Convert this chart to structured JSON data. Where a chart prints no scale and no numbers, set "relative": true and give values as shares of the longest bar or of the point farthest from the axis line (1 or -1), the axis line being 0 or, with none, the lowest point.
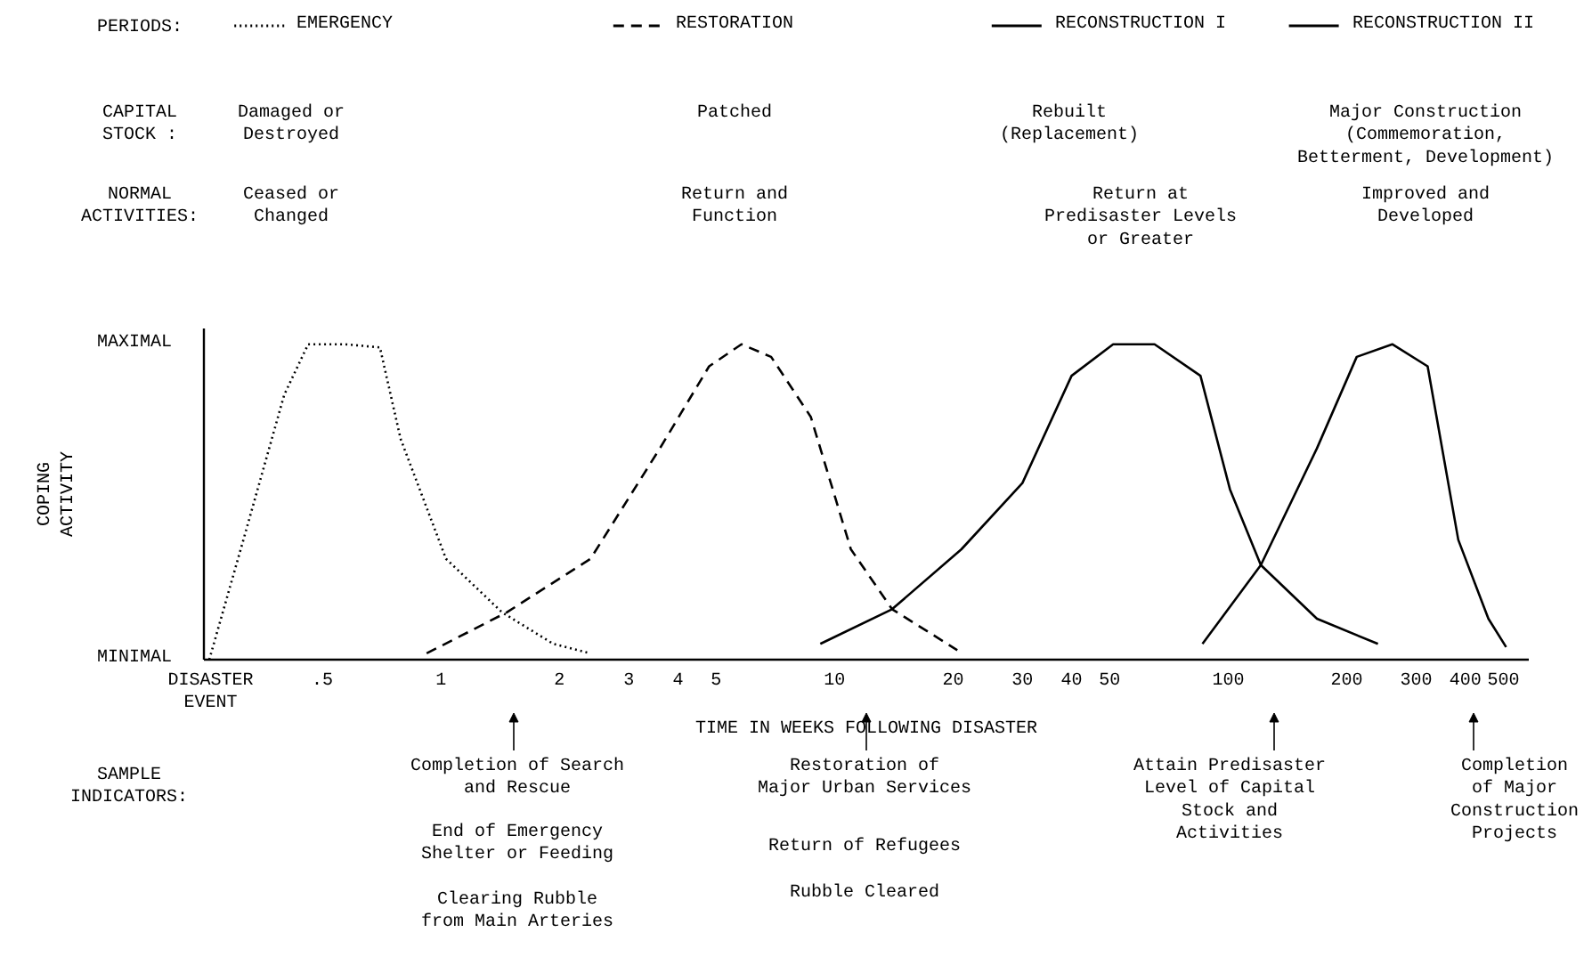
{
  "chart_data": {
    "type": "line",
    "xlabel": "TIME IN WEEKS FOLLOWING DISASTER",
    "ylabel": "COPING\nACTIVITY",
    "log": "x",
    "relative": true,
    "xlim": [
      0.25,
      580
    ],
    "xticks": [
      {
        "value": 0.26,
        "label": "DISASTER\nEVENT"
      },
      {
        "value": 0.5,
        "label": ".5"
      },
      1,
      2,
      3,
      4,
      5,
      10,
      20,
      30,
      40,
      50,
      100,
      200,
      300,
      400,
      500
    ],
    "legend": "top",
    "marker": "none",
    "series": [
      {
        "name": "EMERGENCY",
        "color": "#000000",
        "line_style": "dotted",
        "x": [
          0.258,
          0.315,
          0.4,
          0.46,
          0.57,
          0.7,
          0.79,
          1.03,
          1.43,
          1.93,
          2.4
        ],
        "values": [
          0,
          0.38,
          0.84,
          1.0,
          1.0,
          0.99,
          0.7,
          0.32,
          0.15,
          0.05,
          0.02
        ]
      },
      {
        "name": "RESTORATION",
        "color": "#000000",
        "line_style": "dashed",
        "x": [
          0.92,
          1.47,
          2.4,
          3.6,
          4.8,
          5.8,
          6.9,
          8.7,
          11,
          14,
          20.5
        ],
        "values": [
          0.02,
          0.15,
          0.32,
          0.67,
          0.93,
          1.0,
          0.96,
          0.77,
          0.35,
          0.16,
          0.03
        ]
      },
      {
        "name": "RECONSTRUCTION I",
        "color": "#000000",
        "line_style": "solid",
        "x": [
          9.2,
          14,
          21,
          30,
          40,
          51,
          65,
          85,
          101,
          121,
          168,
          240
        ],
        "values": [
          0.05,
          0.16,
          0.35,
          0.56,
          0.9,
          1.0,
          1.0,
          0.9,
          0.54,
          0.3,
          0.13,
          0.05
        ]
      },
      {
        "name": "RECONSTRUCTION II",
        "color": "#000000",
        "line_style": "solid",
        "x": [
          86,
          121,
          168,
          212,
          261,
          321,
          384,
          458,
          508
        ],
        "values": [
          0.05,
          0.3,
          0.67,
          0.96,
          1.0,
          0.93,
          0.38,
          0.13,
          0.04
        ]
      }
    ],
    "annotations": [
      "PERIODS:",
      "CAPITAL\nSTOCK :",
      "NORMAL\nACTIVITIES:",
      "Damaged or\nDestroyed",
      "Patched",
      "Rebuilt\n(Replacement)",
      "Major Construction\n(Commemoration,\nBetterment, Development)",
      "Ceased or\nChanged",
      "Return and\nFunction",
      "Return at\nPredisaster Levels\nor Greater",
      "Improved and\nDeveloped",
      "SAMPLE\nINDICATORS:",
      "Completion of Search\nand Rescue",
      "End of Emergency\nShelter or Feeding",
      "Clearing Rubble\nfrom Main Arteries",
      "Restoration of\nMajor Urban Services",
      "Return of Refugees",
      "Rubble Cleared",
      "Attain Predisaster\nLevel of Capital\nStock and\nActivities",
      "Completion\nof Major\nConstruction\nProjects",
      "MAXIMAL",
      "MINIMAL"
    ]
  }
}
